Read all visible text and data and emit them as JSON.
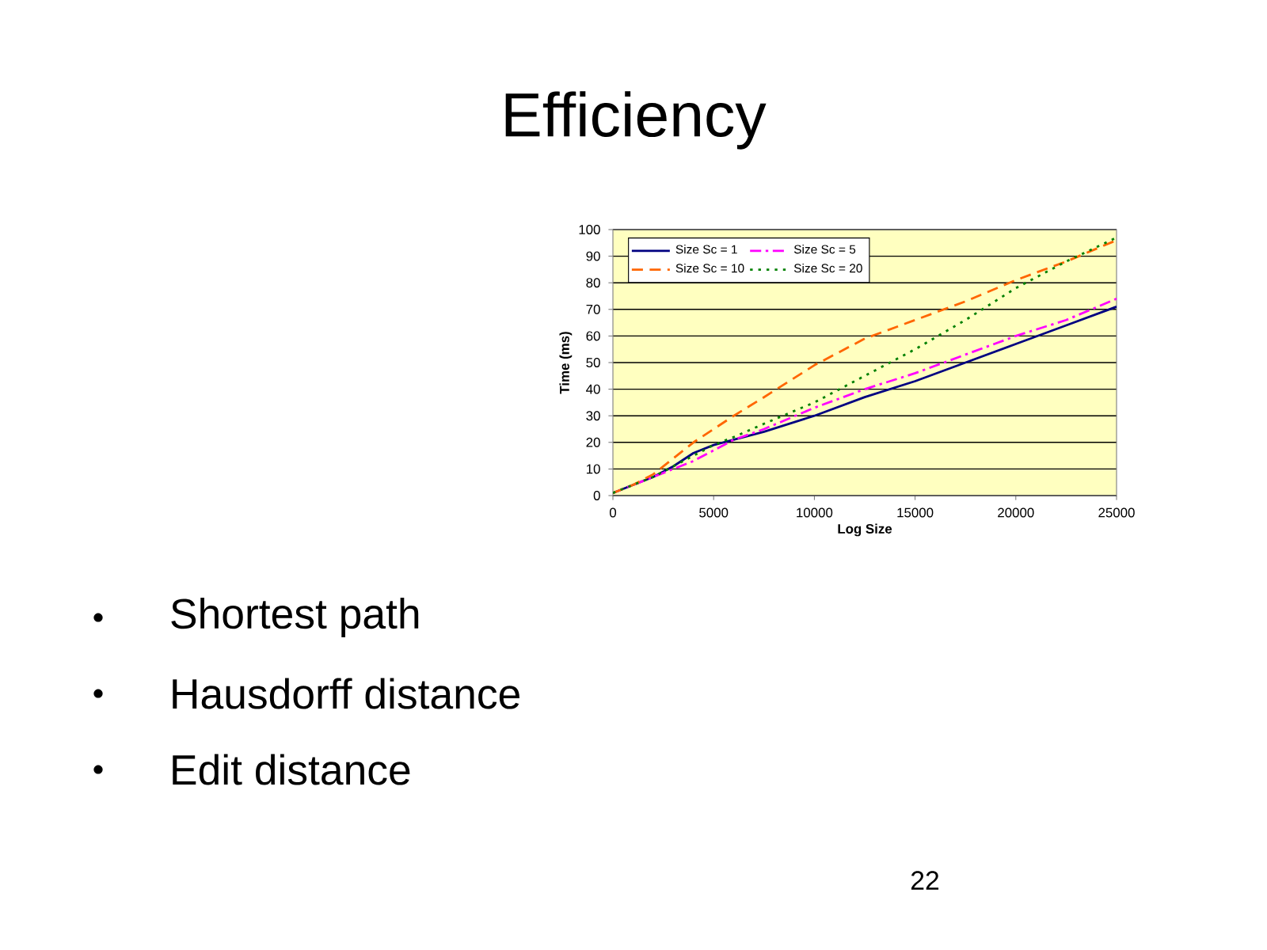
{
  "chart_data": {
    "type": "line",
    "title": "Efficiency",
    "xlabel": "Log Size",
    "ylabel": "Time (ms)",
    "x": [
      0,
      1000,
      2000,
      3000,
      4000,
      5000,
      6000,
      7500,
      10000,
      12500,
      15000,
      17500,
      20000,
      22500,
      25000
    ],
    "series": [
      {
        "name": "Size Sc = 1",
        "color": "#000080",
        "line_style": "solid",
        "values": [
          1,
          4,
          7,
          11,
          16,
          19,
          21,
          24,
          30,
          37,
          43,
          50,
          57,
          64,
          71
        ]
      },
      {
        "name": "Size Sc = 5",
        "color": "#ff00ff",
        "line_style": "dashdot",
        "values": [
          1,
          4,
          7,
          10,
          13,
          17,
          21,
          25,
          33,
          40,
          46,
          53,
          60,
          66,
          74
        ]
      },
      {
        "name": "Size Sc = 10",
        "color": "#ff6600",
        "line_style": "dashed",
        "values": [
          1,
          4,
          8,
          14,
          20,
          25,
          30,
          37,
          49,
          59,
          66,
          73,
          81,
          88,
          96
        ]
      },
      {
        "name": "Size Sc = 20",
        "color": "#008000",
        "line_style": "dotted",
        "values": [
          1,
          4,
          7,
          11,
          15,
          19,
          22,
          27,
          35,
          45,
          55,
          66,
          78,
          88,
          97
        ]
      }
    ],
    "xlim": [
      0,
      25000
    ],
    "ylim": [
      0,
      100
    ],
    "xticks": [
      0,
      5000,
      10000,
      15000,
      20000,
      25000
    ],
    "yticks": [
      0,
      10,
      20,
      30,
      40,
      50,
      60,
      70,
      80,
      90,
      100
    ],
    "grid": "y",
    "legend": "top left",
    "annotations": [
      "Shortest path",
      "Hausdorff distance",
      "Edit distance",
      "22"
    ]
  }
}
